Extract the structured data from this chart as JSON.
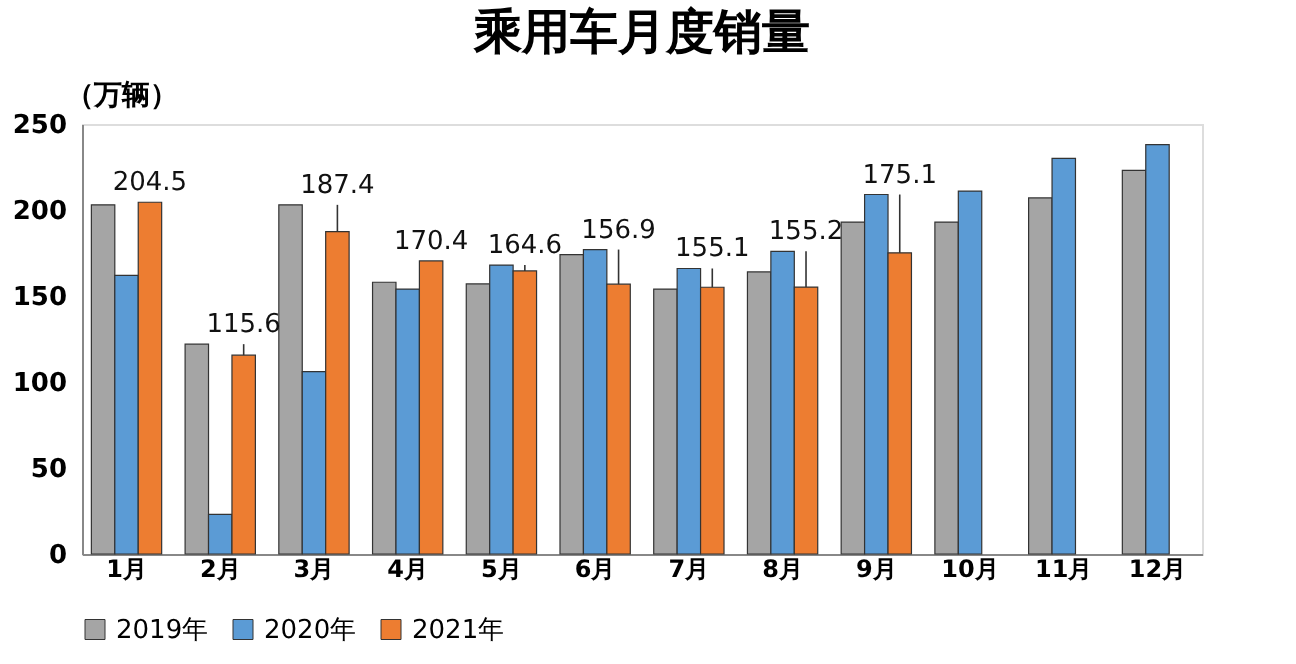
{
  "chart_data": {
    "type": "bar",
    "title": "乘用车月度销量",
    "ylabel": "（万辆）",
    "categories": [
      "1月",
      "2月",
      "3月",
      "4月",
      "5月",
      "6月",
      "7月",
      "8月",
      "9月",
      "10月",
      "11月",
      "12月"
    ],
    "series": [
      {
        "name": "2019年",
        "color": "#a5a5a5",
        "values": [
          203,
          122,
          203,
          158,
          157,
          174,
          154,
          164,
          193,
          193,
          207,
          223
        ]
      },
      {
        "name": "2020年",
        "color": "#5b9bd5",
        "values": [
          162,
          23,
          106,
          154,
          168,
          177,
          166,
          176,
          209,
          211,
          230,
          238
        ]
      },
      {
        "name": "2021年",
        "color": "#ed7d31",
        "values": [
          204.5,
          115.6,
          187.4,
          170.4,
          164.6,
          156.9,
          155.1,
          155.2,
          175.1,
          null,
          null,
          null
        ],
        "value_labels": [
          "204.5",
          "115.6",
          "187.4",
          "170.4",
          "164.6",
          "156.9",
          "155.1",
          "155.2",
          "175.1",
          null,
          null,
          null
        ]
      }
    ],
    "ylim": [
      0,
      250
    ],
    "yticks": [
      0,
      50,
      100,
      150,
      200,
      250
    ],
    "legend": "bottom",
    "grid": false
  }
}
